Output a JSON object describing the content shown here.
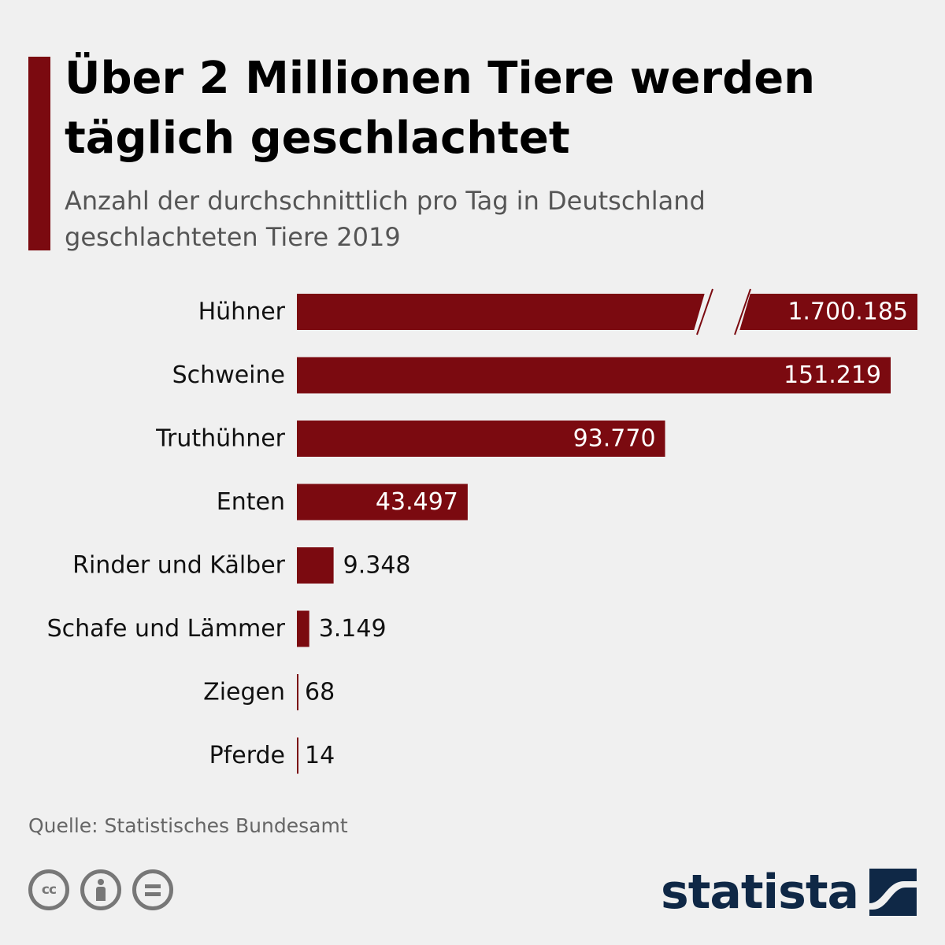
{
  "header": {
    "title": "Über 2 Millionen Tiere werden täglich geschlachtet",
    "subtitle": "Anzahl der durchschnittlich pro Tag in Deutschland geschlachteten Tiere 2019"
  },
  "footer": {
    "source": "Quelle: Statistisches Bundesamt",
    "brand": "statista",
    "license_icons": [
      "creative-commons-icon",
      "attribution-icon",
      "no-derivatives-icon"
    ],
    "cc_text": "cc"
  },
  "colors": {
    "accent": "#7b0a10",
    "bar": "#7b0a10",
    "brand": "#0f2846",
    "background": "#f0f0f0"
  },
  "chart_data": {
    "type": "bar",
    "orientation": "horizontal",
    "categories": [
      "Hühner",
      "Schweine",
      "Truthühner",
      "Enten",
      "Rinder und Kälber",
      "Schafe und Lämmer",
      "Ziegen",
      "Pferde"
    ],
    "values": [
      1700185,
      151219,
      93770,
      43497,
      9348,
      3149,
      68,
      14
    ],
    "value_labels": [
      "1.700.185",
      "151.219",
      "93.770",
      "43.497",
      "9.348",
      "3.149",
      "68",
      "14"
    ],
    "axis_break": "Hühner",
    "title": "Über 2 Millionen Tiere werden täglich geschlachtet",
    "subtitle": "Anzahl der durchschnittlich pro Tag in Deutschland geschlachteten Tiere 2019",
    "grid": false,
    "legend": "none"
  }
}
